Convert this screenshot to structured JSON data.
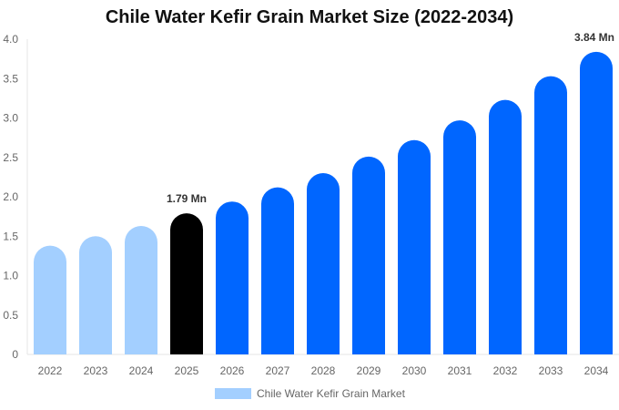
{
  "chart_data": {
    "type": "bar",
    "title": "Chile Water Kefir Grain Market Size (2022-2034)",
    "categories": [
      "2022",
      "2023",
      "2024",
      "2025",
      "2026",
      "2027",
      "2028",
      "2029",
      "2030",
      "2031",
      "2032",
      "2033",
      "2034"
    ],
    "series": [
      {
        "name": "Chile Water Kefir Grain Market",
        "values": [
          1.38,
          1.5,
          1.63,
          1.79,
          1.94,
          2.12,
          2.3,
          2.51,
          2.72,
          2.97,
          3.23,
          3.53,
          3.84
        ]
      }
    ],
    "data_labels": {
      "3": "1.79 Mn",
      "12": "3.84 Mn"
    },
    "ylim": [
      0,
      4.0
    ],
    "yticks": [
      "0",
      "0.5",
      "1.0",
      "1.5",
      "2.0",
      "2.5",
      "3.0",
      "3.5",
      "4.0"
    ],
    "grid": false,
    "legend_position": "bottom",
    "colors": {
      "historical": "#a3cfff",
      "current": "#000000",
      "forecast": "#0066ff",
      "legend": "#a3cfff"
    }
  }
}
